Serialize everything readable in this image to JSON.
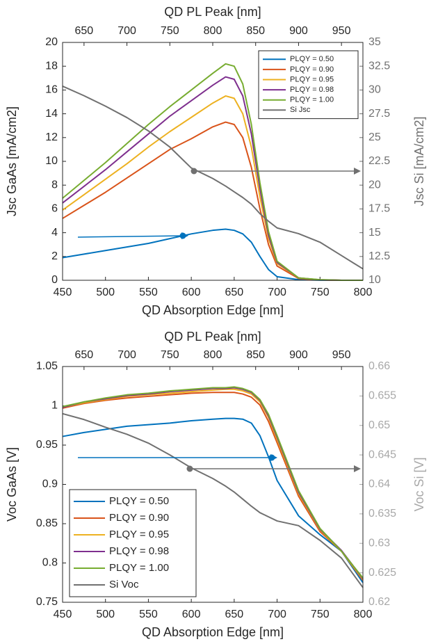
{
  "chart_data": [
    {
      "type": "line",
      "xlabel": "QD Absorption Edge [nm]",
      "ylabel": "Jsc GaAs [mA/cm2]",
      "y2label": "Jsc Si [mA/cm2]",
      "x2label": "QD PL Peak [nm]",
      "x": [
        450,
        475,
        500,
        525,
        550,
        575,
        600,
        625,
        640,
        650,
        660,
        670,
        680,
        690,
        700,
        725,
        750,
        775,
        800
      ],
      "xlim": [
        450,
        800
      ],
      "xticks": [
        450,
        500,
        550,
        600,
        650,
        700,
        750,
        800
      ],
      "x2lim": [
        625,
        975
      ],
      "x2ticks": [
        650,
        700,
        750,
        800,
        850,
        900,
        950
      ],
      "ylim": [
        0,
        20
      ],
      "yticks": [
        0,
        2,
        4,
        6,
        8,
        10,
        12,
        14,
        16,
        18,
        20
      ],
      "y2lim": [
        10,
        35
      ],
      "y2ticks": [
        10,
        12.5,
        15,
        17.5,
        20,
        22.5,
        25,
        27.5,
        30,
        32.5,
        35
      ],
      "y2_color": "#707070",
      "legend": "upper right",
      "series": [
        {
          "name": "PLQY = 0.50",
          "color": "#0072BD",
          "values": [
            1.9,
            2.2,
            2.5,
            2.8,
            3.1,
            3.5,
            3.9,
            4.2,
            4.3,
            4.2,
            3.9,
            3.2,
            2.0,
            0.9,
            0.3,
            0.05,
            0.01,
            0,
            0
          ]
        },
        {
          "name": "PLQY = 0.90",
          "color": "#D95319",
          "values": [
            5.2,
            6.3,
            7.4,
            8.6,
            9.8,
            11.0,
            11.9,
            12.9,
            13.3,
            13.1,
            12.0,
            9.5,
            6.0,
            3.0,
            1.2,
            0.15,
            0.03,
            0,
            0
          ]
        },
        {
          "name": "PLQY = 0.95",
          "color": "#EDB120",
          "values": [
            5.9,
            7.2,
            8.5,
            9.8,
            11.2,
            12.5,
            13.7,
            14.9,
            15.5,
            15.3,
            14.0,
            11.2,
            7.0,
            3.5,
            1.4,
            0.2,
            0.04,
            0,
            0
          ]
        },
        {
          "name": "PLQY = 0.98",
          "color": "#7E2F8E",
          "values": [
            6.5,
            7.9,
            9.3,
            10.8,
            12.3,
            13.8,
            15.1,
            16.4,
            17.1,
            16.9,
            15.5,
            12.3,
            7.7,
            3.8,
            1.5,
            0.2,
            0.04,
            0,
            0
          ]
        },
        {
          "name": "PLQY = 1.00",
          "color": "#77AC30",
          "values": [
            6.9,
            8.4,
            9.9,
            11.5,
            13.1,
            14.6,
            16.0,
            17.4,
            18.2,
            18.0,
            16.5,
            13.1,
            8.2,
            4.1,
            1.6,
            0.2,
            0.05,
            0,
            0
          ]
        },
        {
          "name": "Si Jsc",
          "color": "#707070",
          "axis": "y2",
          "values": [
            30.4,
            29.4,
            28.3,
            27.1,
            25.7,
            24.0,
            21.8,
            20.7,
            19.9,
            19.3,
            18.7,
            18.0,
            17.0,
            16.2,
            15.5,
            14.9,
            14.0,
            12.6,
            11.2
          ]
        }
      ]
    },
    {
      "type": "line",
      "xlabel": "QD Absorption Edge [nm]",
      "ylabel": "Voc GaAs [V]",
      "y2label": "Voc Si [V]",
      "x2label": "QD PL Peak [nm]",
      "x": [
        450,
        475,
        500,
        525,
        550,
        575,
        600,
        625,
        640,
        650,
        660,
        670,
        680,
        690,
        700,
        725,
        750,
        775,
        800
      ],
      "xlim": [
        450,
        800
      ],
      "xticks": [
        450,
        500,
        550,
        600,
        650,
        700,
        750,
        800
      ],
      "x2lim": [
        625,
        975
      ],
      "x2ticks": [
        650,
        700,
        750,
        800,
        850,
        900,
        950
      ],
      "ylim": [
        0.75,
        1.05
      ],
      "yticks": [
        0.75,
        0.8,
        0.85,
        0.9,
        0.95,
        1,
        1.05
      ],
      "y2lim": [
        0.62,
        0.66
      ],
      "y2ticks": [
        0.62,
        0.625,
        0.63,
        0.635,
        0.64,
        0.645,
        0.65,
        0.655,
        0.66
      ],
      "y2_color": "#a8a8a8",
      "legend": "lower left",
      "series": [
        {
          "name": "PLQY = 0.50",
          "color": "#0072BD",
          "values": [
            0.961,
            0.966,
            0.97,
            0.974,
            0.976,
            0.978,
            0.981,
            0.983,
            0.984,
            0.984,
            0.983,
            0.978,
            0.962,
            0.935,
            0.905,
            0.86,
            0.836,
            0.815,
            0.775
          ]
        },
        {
          "name": "PLQY = 0.90",
          "color": "#D95319",
          "values": [
            0.997,
            1.003,
            1.007,
            1.01,
            1.012,
            1.014,
            1.016,
            1.017,
            1.017,
            1.017,
            1.015,
            1.011,
            1.001,
            0.98,
            0.953,
            0.885,
            0.84,
            0.815,
            0.778
          ]
        },
        {
          "name": "PLQY = 0.95",
          "color": "#EDB120",
          "values": [
            0.998,
            1.004,
            1.008,
            1.012,
            1.014,
            1.016,
            1.018,
            1.02,
            1.021,
            1.021,
            1.019,
            1.015,
            1.005,
            0.985,
            0.957,
            0.888,
            0.842,
            0.815,
            0.779
          ]
        },
        {
          "name": "PLQY = 0.98",
          "color": "#7E2F8E",
          "values": [
            0.998,
            1.005,
            1.009,
            1.013,
            1.015,
            1.018,
            1.02,
            1.022,
            1.022,
            1.023,
            1.021,
            1.017,
            1.007,
            0.987,
            0.96,
            0.89,
            0.843,
            0.816,
            0.78
          ]
        },
        {
          "name": "PLQY = 1.00",
          "color": "#77AC30",
          "values": [
            0.999,
            1.005,
            1.01,
            1.014,
            1.016,
            1.019,
            1.021,
            1.023,
            1.023,
            1.024,
            1.022,
            1.018,
            1.008,
            0.989,
            0.962,
            0.892,
            0.844,
            0.815,
            0.781
          ]
        },
        {
          "name": "Si Voc",
          "color": "#707070",
          "axis": "y2",
          "values": [
            0.652,
            0.651,
            0.6497,
            0.6485,
            0.647,
            0.645,
            0.6428,
            0.641,
            0.6397,
            0.6387,
            0.6375,
            0.6363,
            0.6352,
            0.6345,
            0.6338,
            0.633,
            0.6305,
            0.6275,
            0.6225
          ]
        }
      ]
    }
  ]
}
